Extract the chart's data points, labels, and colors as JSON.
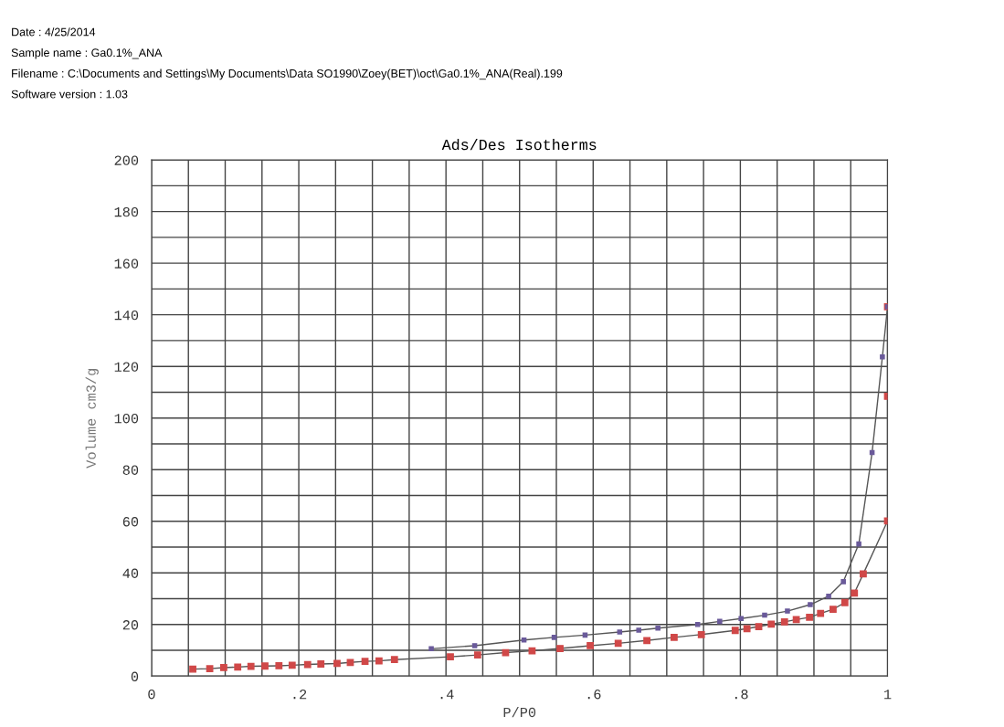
{
  "chart_data": {
    "type": "line",
    "title": "Ads/Des Isotherms",
    "xlabel": "P/P0",
    "ylabel": "Volume cm3/g",
    "annotations": [
      "Date : 4/25/2014",
      "Sample name : Ga0.1%_ANA",
      "Filename : C:\\Documents and Settings\\My Documents\\Data SO1990\\Zoey(BET)\\oct\\Ga0.1%_ANA(Real).199",
      "Software version : 1.03"
    ],
    "xlim": [
      0,
      1
    ],
    "ylim": [
      0,
      200
    ],
    "xticks": [
      0,
      {
        "value": 0.05,
        "label": null
      },
      {
        "value": 0.1,
        "label": null
      },
      {
        "value": 0.15,
        "label": null
      },
      {
        "value": 0.2,
        "label": ".2"
      },
      {
        "value": 0.25,
        "label": null
      },
      {
        "value": 0.3,
        "label": null
      },
      {
        "value": 0.35,
        "label": null
      },
      {
        "value": 0.4,
        "label": ".4"
      },
      {
        "value": 0.45,
        "label": null
      },
      {
        "value": 0.5,
        "label": null
      },
      {
        "value": 0.55,
        "label": null
      },
      {
        "value": 0.6,
        "label": ".6"
      },
      {
        "value": 0.65,
        "label": null
      },
      {
        "value": 0.7,
        "label": null
      },
      {
        "value": 0.75,
        "label": null
      },
      {
        "value": 0.8,
        "label": ".8"
      },
      {
        "value": 0.85,
        "label": null
      },
      {
        "value": 0.9,
        "label": null
      },
      {
        "value": 0.95,
        "label": null
      },
      1
    ],
    "yticks": [
      0,
      {
        "value": 10,
        "label": null
      },
      20,
      {
        "value": 30,
        "label": null
      },
      40,
      {
        "value": 50,
        "label": null
      },
      60,
      {
        "value": 70,
        "label": null
      },
      80,
      {
        "value": 90,
        "label": null
      },
      100,
      {
        "value": 110,
        "label": null
      },
      120,
      {
        "value": 130,
        "label": null
      },
      140,
      {
        "value": 150,
        "label": null
      },
      160,
      {
        "value": 170,
        "label": null
      },
      180,
      {
        "value": 190,
        "label": null
      },
      200
    ],
    "grid": true,
    "marker": "square",
    "series": [
      {
        "color": "#d04848",
        "x": [
          0.056,
          0.079,
          0.098,
          0.117,
          0.135,
          0.154,
          0.173,
          0.191,
          0.212,
          0.23,
          0.252,
          0.27,
          0.29,
          0.309,
          0.33,
          0.406,
          0.443,
          0.481,
          0.517,
          0.555,
          0.596,
          0.634,
          0.673,
          0.71,
          0.747,
          0.793,
          0.809,
          0.825,
          0.842,
          0.86,
          0.876,
          0.894,
          0.909,
          0.926,
          0.942,
          0.955,
          0.967,
          1.0,
          1.0,
          1.0
        ],
        "values": [
          2.7,
          2.9,
          3.3,
          3.5,
          3.8,
          3.9,
          4.0,
          4.2,
          4.5,
          4.7,
          4.9,
          5.3,
          5.7,
          5.9,
          6.4,
          7.5,
          8.2,
          9.1,
          9.8,
          10.7,
          11.8,
          12.7,
          13.8,
          15.0,
          16.1,
          17.7,
          18.4,
          19.2,
          20.1,
          21.0,
          21.9,
          22.8,
          24.3,
          25.9,
          28.5,
          32.2,
          39.6,
          60.1,
          108.4,
          143.1
        ]
      },
      {
        "color": "#6a5a9a",
        "x": [
          1.0,
          0.993,
          0.979,
          0.961,
          0.94,
          0.92,
          0.895,
          0.864,
          0.833,
          0.801,
          0.772,
          0.742,
          0.688,
          0.662,
          0.636,
          0.589,
          0.547,
          0.506,
          0.439,
          0.38
        ],
        "values": [
          143.1,
          123.7,
          86.6,
          51.2,
          36.6,
          31.0,
          27.7,
          25.2,
          23.6,
          22.3,
          21.2,
          20.0,
          18.6,
          17.8,
          17.1,
          15.9,
          15.0,
          14.0,
          11.8,
          10.6
        ]
      }
    ]
  }
}
